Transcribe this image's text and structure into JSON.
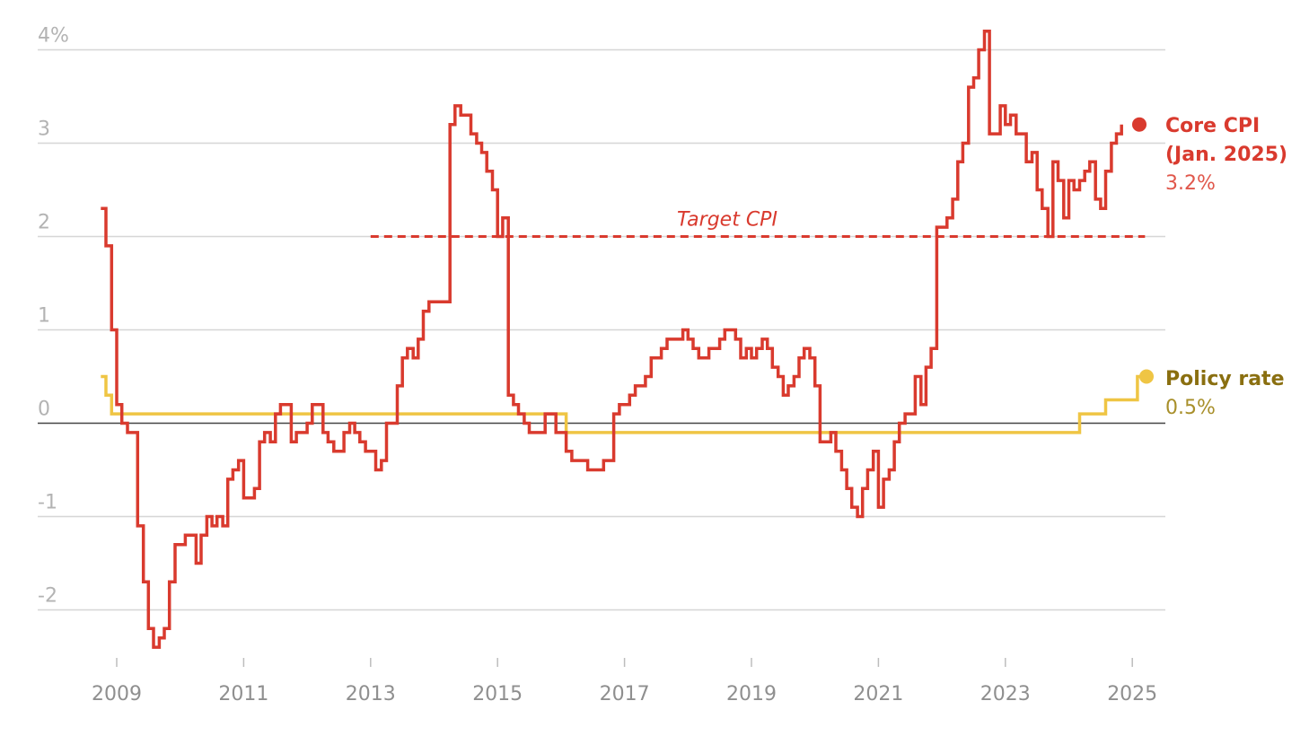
{
  "chart_data": {
    "type": "line",
    "step": true,
    "x_unit": "year (decimal)",
    "xlim": [
      2008.4,
      2025.4
    ],
    "ylim": [
      -2.5,
      4.25
    ],
    "yticks": [
      {
        "value": 4,
        "label": "4%"
      },
      {
        "value": 3,
        "label": "3"
      },
      {
        "value": 2,
        "label": "2"
      },
      {
        "value": 1,
        "label": "1"
      },
      {
        "value": 0,
        "label": "0"
      },
      {
        "value": -1,
        "label": "-1"
      },
      {
        "value": -2,
        "label": "-2"
      }
    ],
    "xticks": [
      "2009",
      "2011",
      "2013",
      "2015",
      "2017",
      "2019",
      "2021",
      "2023",
      "2025"
    ],
    "grid": true,
    "target": {
      "label": "Target CPI",
      "value": 2,
      "x_start": 2013.0,
      "x_end": 2025.2,
      "color": "#d93a2e"
    },
    "series": [
      {
        "name": "Core CPI",
        "color": "#d93a2e",
        "label_lines": [
          "Core CPI",
          "(Jan. 2025)"
        ],
        "latest_label": "3.2%",
        "points": [
          [
            2008.75,
            2.3
          ],
          [
            2008.83,
            1.9
          ],
          [
            2008.92,
            1.0
          ],
          [
            2009.0,
            0.2
          ],
          [
            2009.08,
            0.0
          ],
          [
            2009.17,
            -0.1
          ],
          [
            2009.33,
            -1.1
          ],
          [
            2009.42,
            -1.7
          ],
          [
            2009.5,
            -2.2
          ],
          [
            2009.58,
            -2.4
          ],
          [
            2009.67,
            -2.3
          ],
          [
            2009.75,
            -2.2
          ],
          [
            2009.83,
            -1.7
          ],
          [
            2009.92,
            -1.3
          ],
          [
            2010.08,
            -1.2
          ],
          [
            2010.25,
            -1.5
          ],
          [
            2010.33,
            -1.2
          ],
          [
            2010.42,
            -1.0
          ],
          [
            2010.5,
            -1.1
          ],
          [
            2010.58,
            -1.0
          ],
          [
            2010.67,
            -1.1
          ],
          [
            2010.75,
            -0.6
          ],
          [
            2010.83,
            -0.5
          ],
          [
            2010.92,
            -0.4
          ],
          [
            2011.0,
            -0.8
          ],
          [
            2011.17,
            -0.7
          ],
          [
            2011.25,
            -0.2
          ],
          [
            2011.33,
            -0.1
          ],
          [
            2011.42,
            -0.2
          ],
          [
            2011.5,
            0.1
          ],
          [
            2011.58,
            0.2
          ],
          [
            2011.75,
            -0.2
          ],
          [
            2011.83,
            -0.1
          ],
          [
            2012.0,
            0.0
          ],
          [
            2012.08,
            0.2
          ],
          [
            2012.25,
            -0.1
          ],
          [
            2012.33,
            -0.2
          ],
          [
            2012.42,
            -0.3
          ],
          [
            2012.58,
            -0.1
          ],
          [
            2012.67,
            0.0
          ],
          [
            2012.75,
            -0.1
          ],
          [
            2012.83,
            -0.2
          ],
          [
            2012.92,
            -0.3
          ],
          [
            2013.08,
            -0.5
          ],
          [
            2013.17,
            -0.4
          ],
          [
            2013.25,
            0.0
          ],
          [
            2013.42,
            0.4
          ],
          [
            2013.5,
            0.7
          ],
          [
            2013.58,
            0.8
          ],
          [
            2013.67,
            0.7
          ],
          [
            2013.75,
            0.9
          ],
          [
            2013.83,
            1.2
          ],
          [
            2013.92,
            1.3
          ],
          [
            2014.25,
            3.2
          ],
          [
            2014.33,
            3.4
          ],
          [
            2014.42,
            3.3
          ],
          [
            2014.58,
            3.1
          ],
          [
            2014.67,
            3.0
          ],
          [
            2014.75,
            2.9
          ],
          [
            2014.83,
            2.7
          ],
          [
            2014.92,
            2.5
          ],
          [
            2015.0,
            2.0
          ],
          [
            2015.08,
            2.2
          ],
          [
            2015.17,
            0.3
          ],
          [
            2015.25,
            0.2
          ],
          [
            2015.33,
            0.1
          ],
          [
            2015.42,
            0.0
          ],
          [
            2015.5,
            -0.1
          ],
          [
            2015.75,
            0.1
          ],
          [
            2015.92,
            -0.1
          ],
          [
            2016.08,
            -0.3
          ],
          [
            2016.17,
            -0.4
          ],
          [
            2016.42,
            -0.5
          ],
          [
            2016.67,
            -0.4
          ],
          [
            2016.83,
            0.1
          ],
          [
            2016.92,
            0.2
          ],
          [
            2017.08,
            0.3
          ],
          [
            2017.17,
            0.4
          ],
          [
            2017.33,
            0.5
          ],
          [
            2017.42,
            0.7
          ],
          [
            2017.58,
            0.8
          ],
          [
            2017.67,
            0.9
          ],
          [
            2017.92,
            1.0
          ],
          [
            2018.0,
            0.9
          ],
          [
            2018.08,
            0.8
          ],
          [
            2018.17,
            0.7
          ],
          [
            2018.33,
            0.8
          ],
          [
            2018.5,
            0.9
          ],
          [
            2018.58,
            1.0
          ],
          [
            2018.75,
            0.9
          ],
          [
            2018.83,
            0.7
          ],
          [
            2018.92,
            0.8
          ],
          [
            2019.0,
            0.7
          ],
          [
            2019.08,
            0.8
          ],
          [
            2019.17,
            0.9
          ],
          [
            2019.25,
            0.8
          ],
          [
            2019.33,
            0.6
          ],
          [
            2019.42,
            0.5
          ],
          [
            2019.5,
            0.3
          ],
          [
            2019.58,
            0.4
          ],
          [
            2019.67,
            0.5
          ],
          [
            2019.75,
            0.7
          ],
          [
            2019.83,
            0.8
          ],
          [
            2019.92,
            0.7
          ],
          [
            2020.0,
            0.4
          ],
          [
            2020.08,
            -0.2
          ],
          [
            2020.25,
            -0.1
          ],
          [
            2020.33,
            -0.3
          ],
          [
            2020.42,
            -0.5
          ],
          [
            2020.5,
            -0.7
          ],
          [
            2020.58,
            -0.9
          ],
          [
            2020.67,
            -1.0
          ],
          [
            2020.75,
            -0.7
          ],
          [
            2020.83,
            -0.5
          ],
          [
            2020.92,
            -0.3
          ],
          [
            2021.0,
            -0.9
          ],
          [
            2021.08,
            -0.6
          ],
          [
            2021.17,
            -0.5
          ],
          [
            2021.25,
            -0.2
          ],
          [
            2021.33,
            0.0
          ],
          [
            2021.42,
            0.1
          ],
          [
            2021.58,
            0.5
          ],
          [
            2021.67,
            0.2
          ],
          [
            2021.75,
            0.6
          ],
          [
            2021.83,
            0.8
          ],
          [
            2021.92,
            2.1
          ],
          [
            2022.08,
            2.2
          ],
          [
            2022.17,
            2.4
          ],
          [
            2022.25,
            2.8
          ],
          [
            2022.33,
            3.0
          ],
          [
            2022.42,
            3.6
          ],
          [
            2022.5,
            3.7
          ],
          [
            2022.58,
            4.0
          ],
          [
            2022.67,
            4.2
          ],
          [
            2022.75,
            3.1
          ],
          [
            2022.92,
            3.4
          ],
          [
            2023.0,
            3.2
          ],
          [
            2023.08,
            3.3
          ],
          [
            2023.17,
            3.1
          ],
          [
            2023.33,
            2.8
          ],
          [
            2023.42,
            2.9
          ],
          [
            2023.5,
            2.5
          ],
          [
            2023.58,
            2.3
          ],
          [
            2023.67,
            2.0
          ],
          [
            2023.75,
            2.8
          ],
          [
            2023.83,
            2.6
          ],
          [
            2023.92,
            2.2
          ],
          [
            2024.0,
            2.6
          ],
          [
            2024.08,
            2.5
          ],
          [
            2024.17,
            2.6
          ],
          [
            2024.25,
            2.7
          ],
          [
            2024.33,
            2.8
          ],
          [
            2024.42,
            2.4
          ],
          [
            2024.5,
            2.3
          ],
          [
            2024.58,
            2.7
          ],
          [
            2024.67,
            3.0
          ],
          [
            2024.75,
            3.1
          ],
          [
            2024.83,
            3.2
          ]
        ]
      },
      {
        "name": "Policy rate",
        "color": "#efc544",
        "label_lines": [
          "Policy rate"
        ],
        "latest_label": "0.5%",
        "points": [
          [
            2008.75,
            0.5
          ],
          [
            2008.83,
            0.3
          ],
          [
            2008.92,
            0.1
          ],
          [
            2016.08,
            -0.1
          ],
          [
            2024.17,
            0.1
          ],
          [
            2024.58,
            0.25
          ],
          [
            2025.08,
            0.5
          ],
          [
            2025.25,
            0.5
          ]
        ]
      }
    ]
  }
}
